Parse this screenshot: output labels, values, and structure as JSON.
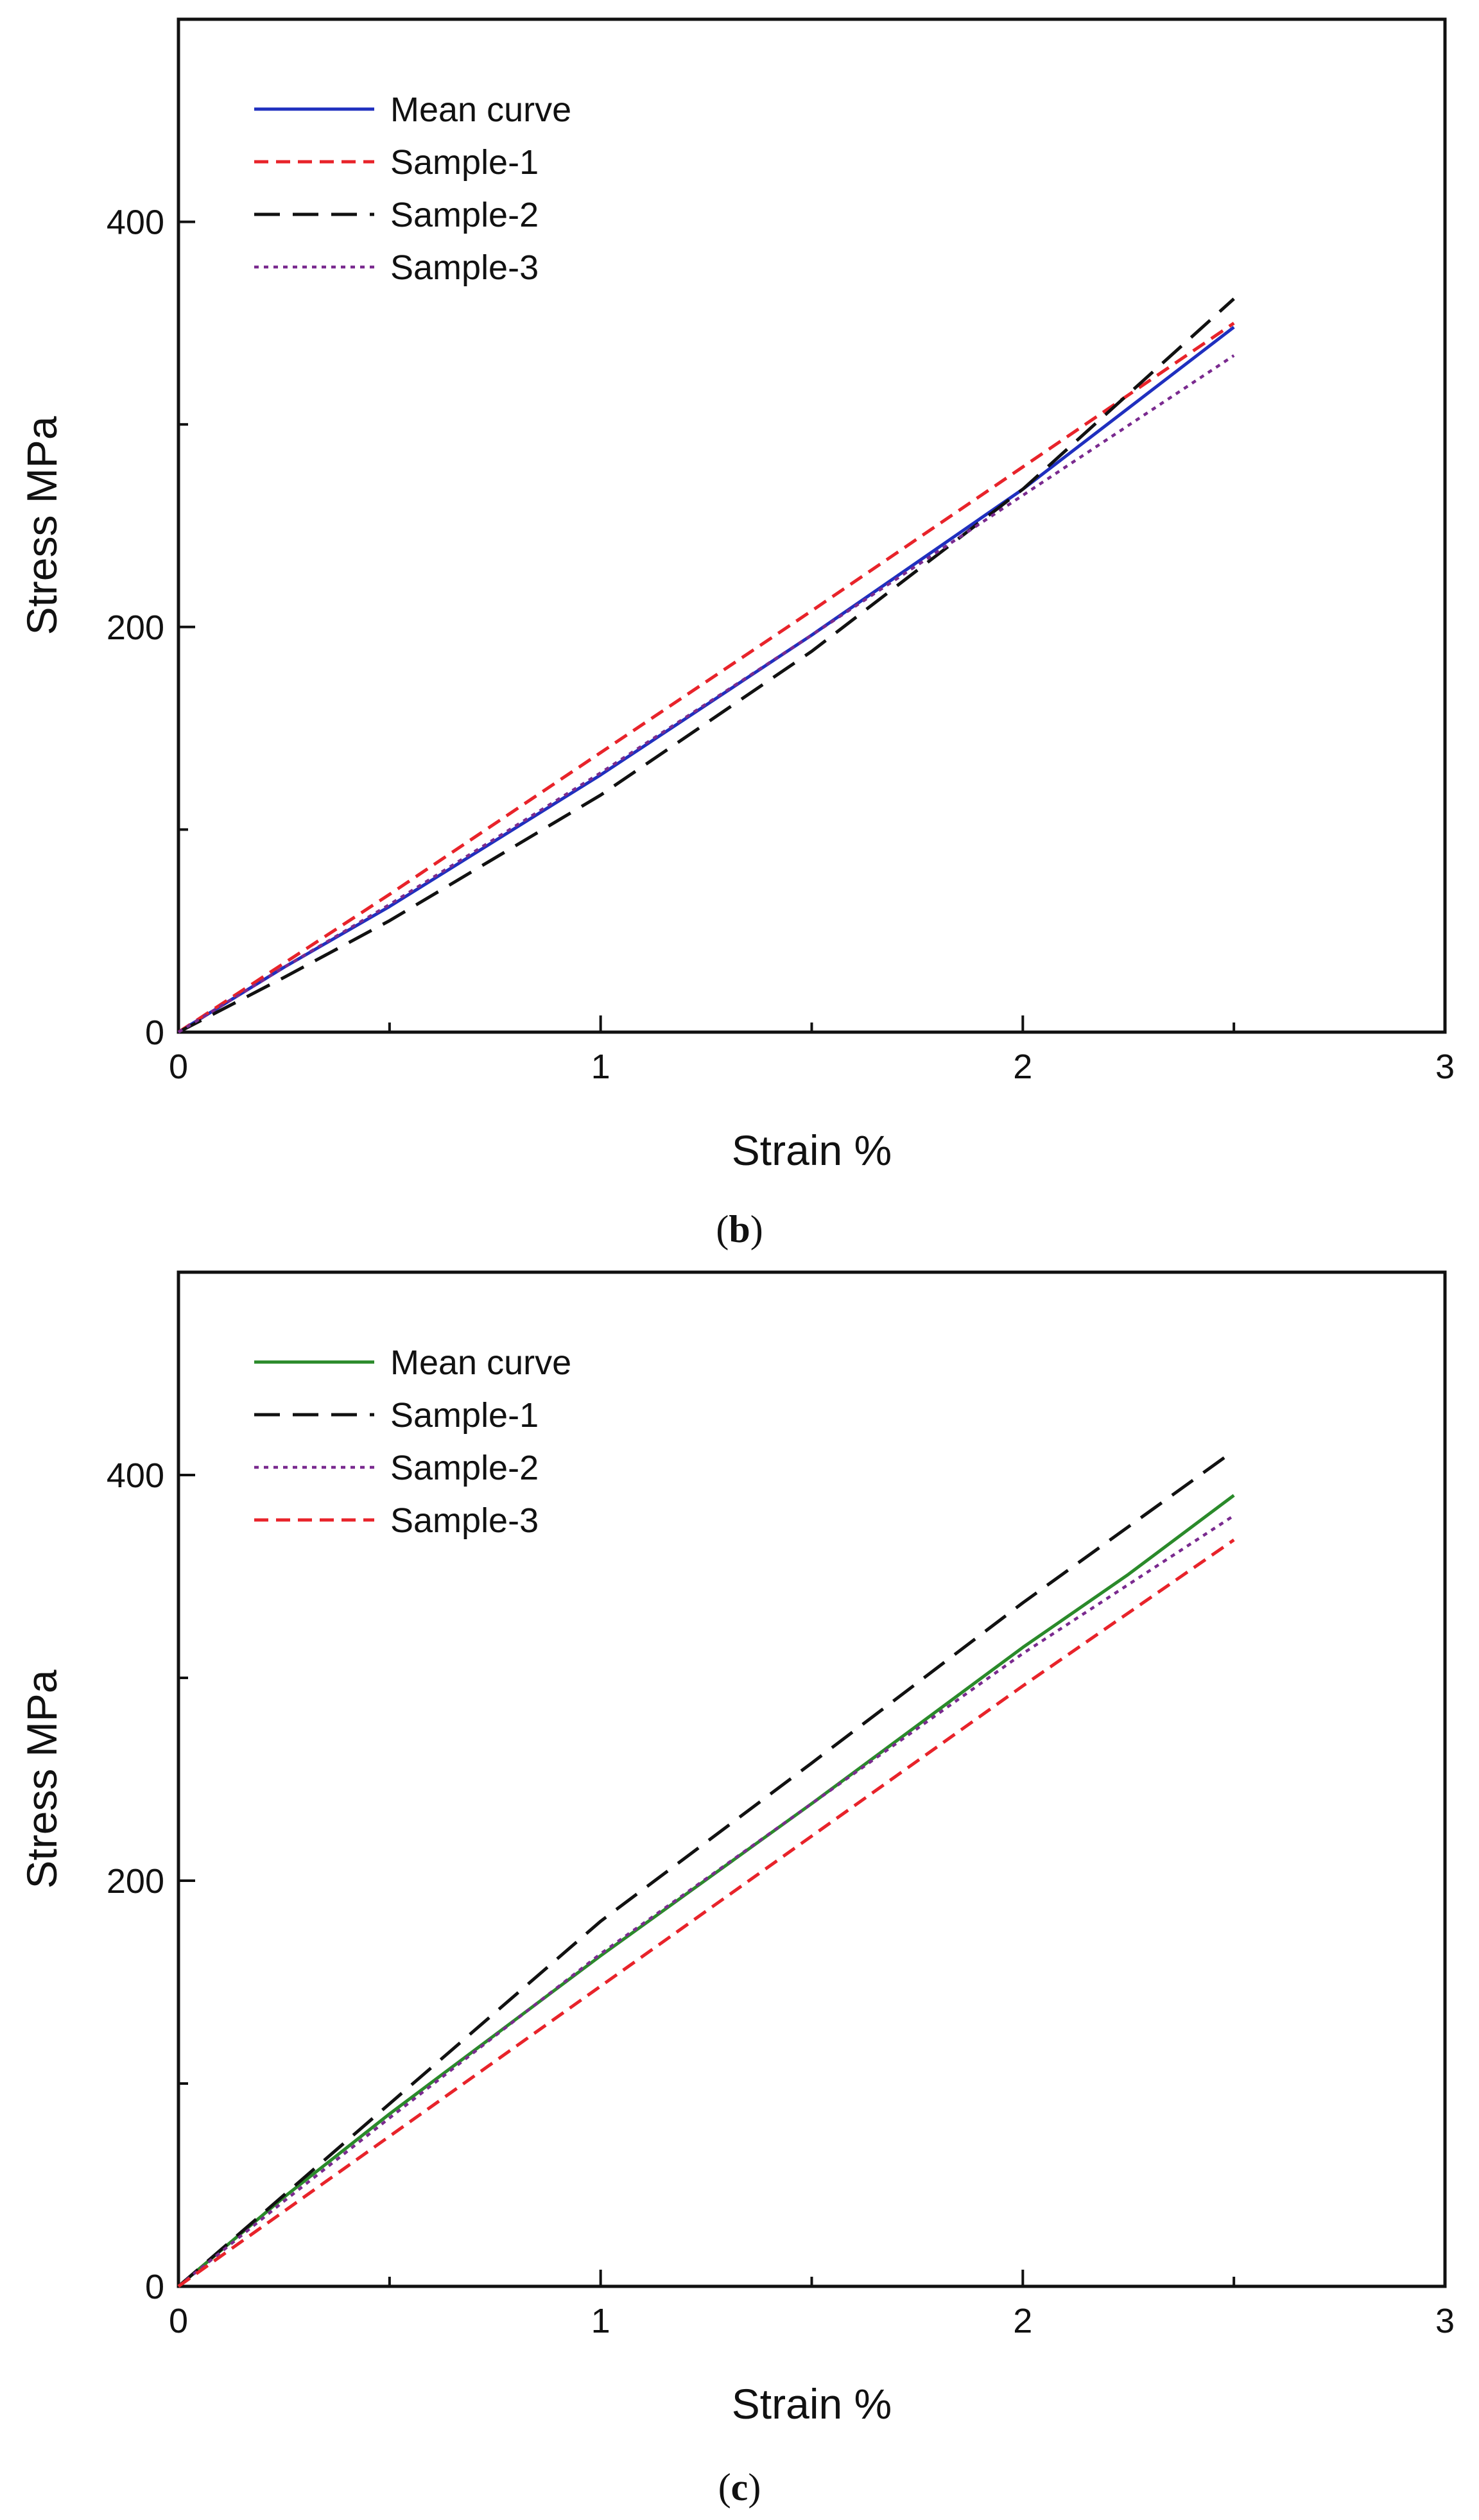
{
  "chart_data": [
    {
      "type": "line",
      "xlabel": "Strain %",
      "ylabel": "Stress MPa",
      "xlim": [
        0,
        3
      ],
      "ylim": [
        0,
        500
      ],
      "x_ticks": [
        0,
        1,
        2,
        3
      ],
      "x_minor_ticks": [
        0.5,
        1.5,
        2.5
      ],
      "y_ticks": [
        0,
        200,
        400
      ],
      "y_minor_ticks": [
        100,
        300
      ],
      "legend_position": "top-left",
      "caption": "(b)",
      "series": [
        {
          "name": "Mean curve",
          "color": "#1f2fbf",
          "style": "solid",
          "x": [
            0,
            0.25,
            0.5,
            1.0,
            1.5,
            2.0,
            2.5
          ],
          "y": [
            0,
            32,
            62,
            127,
            196,
            268,
            348
          ]
        },
        {
          "name": "Sample-1",
          "color": "#e8232a",
          "style": "dashed",
          "x": [
            0,
            0.5,
            1.0,
            1.5,
            2.0,
            2.5
          ],
          "y": [
            0,
            68,
            138,
            208,
            279,
            350
          ]
        },
        {
          "name": "Sample-2",
          "color": "#111111",
          "style": "longdash",
          "x": [
            0,
            0.25,
            0.5,
            1.0,
            1.5,
            2.0,
            2.5
          ],
          "y": [
            0,
            27,
            55,
            117,
            188,
            268,
            362
          ]
        },
        {
          "name": "Sample-3",
          "color": "#7a2a8f",
          "style": "dotted",
          "x": [
            0,
            0.25,
            0.5,
            1.0,
            1.5,
            2.0,
            2.5
          ],
          "y": [
            0,
            32,
            63,
            128,
            196,
            265,
            334
          ]
        }
      ]
    },
    {
      "type": "line",
      "xlabel": "Strain %",
      "ylabel": "Stress MPa",
      "xlim": [
        0,
        3
      ],
      "ylim": [
        0,
        500
      ],
      "x_ticks": [
        0,
        1,
        2,
        3
      ],
      "x_minor_ticks": [
        0.5,
        1.5,
        2.5
      ],
      "y_ticks": [
        0,
        200,
        400
      ],
      "y_minor_ticks": [
        100,
        300
      ],
      "legend_position": "top-left",
      "caption": "(c)",
      "series": [
        {
          "name": "Mean curve",
          "color": "#2a8a2a",
          "style": "solid",
          "x": [
            0,
            0.25,
            0.5,
            1.0,
            1.5,
            2.0,
            2.25,
            2.5
          ],
          "y": [
            0,
            44,
            85,
            163,
            238,
            315,
            351,
            390
          ]
        },
        {
          "name": "Sample-1",
          "color": "#111111",
          "style": "longdash",
          "x": [
            0,
            0.5,
            1.0,
            1.5,
            2.0,
            2.5
          ],
          "y": [
            0,
            90,
            180,
            258,
            337,
            412
          ]
        },
        {
          "name": "Sample-2",
          "color": "#7a2a8f",
          "style": "dotted",
          "x": [
            0,
            0.25,
            0.5,
            1.0,
            1.5,
            2.0,
            2.5
          ],
          "y": [
            0,
            42,
            83,
            164,
            238,
            312,
            380
          ]
        },
        {
          "name": "Sample-3",
          "color": "#e8232a",
          "style": "dashed",
          "x": [
            0,
            0.5,
            1.0,
            1.5,
            2.0,
            2.5
          ],
          "y": [
            0,
            74,
            148,
            222,
            296,
            368
          ]
        }
      ]
    }
  ]
}
